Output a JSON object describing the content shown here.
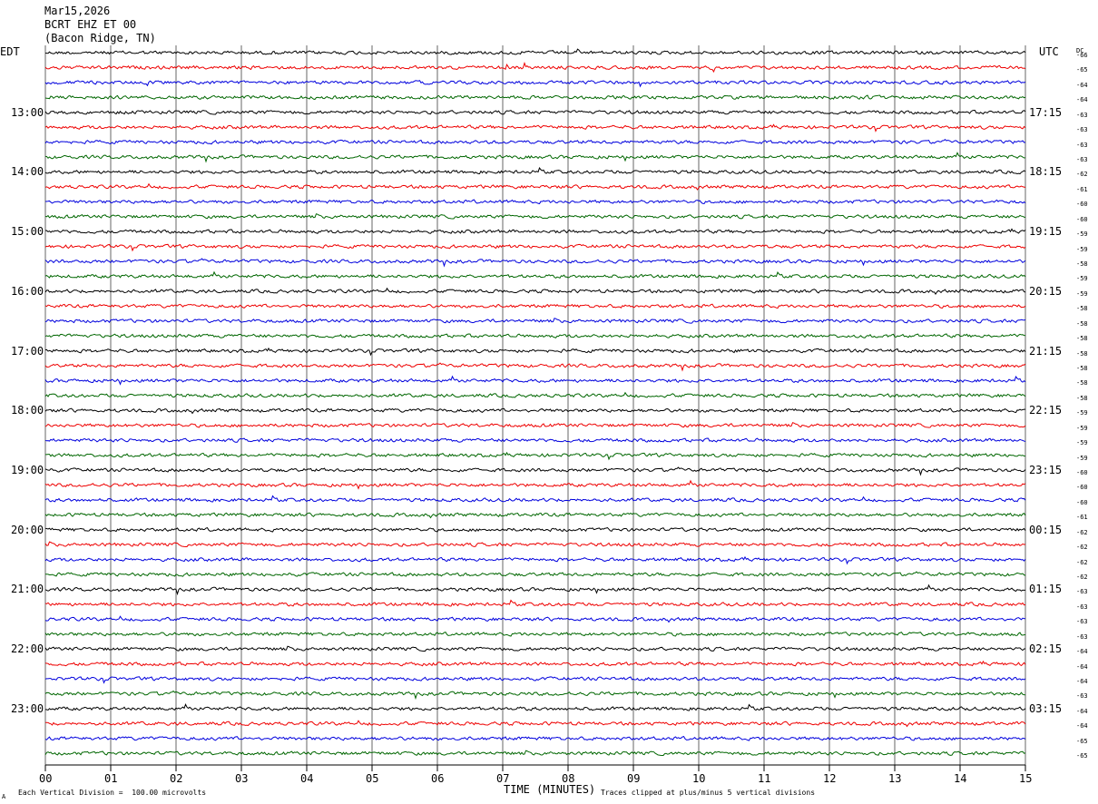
{
  "header": {
    "date": "Mar15,2026",
    "station": "BCRT EHZ ET 00",
    "location": "(Bacon Ridge, TN)"
  },
  "labels": {
    "left_zone": "EDT",
    "right_zone": "UTC",
    "dc_label": "DC",
    "xaxis_title": "TIME (MINUTES)",
    "scale_note": "Each Vertical Division =  100.00 microvolts",
    "clip_note": "Traces clipped at plus/minus 5 vertical divisions",
    "corner_mark": "A"
  },
  "chart_data": {
    "type": "line",
    "title": "",
    "xlabel": "TIME (MINUTES)",
    "xlim": [
      0,
      15
    ],
    "x_ticks": [
      "00",
      "01",
      "02",
      "03",
      "04",
      "05",
      "06",
      "07",
      "08",
      "09",
      "10",
      "11",
      "12",
      "13",
      "14",
      "15"
    ],
    "rows_per_hour": 4,
    "trace_colors": [
      "#000000",
      "#ee0000",
      "#0000dd",
      "#006600"
    ],
    "edt_hour_labels": [
      "13:00",
      "14:00",
      "15:00",
      "16:00",
      "17:00",
      "18:00",
      "19:00",
      "20:00",
      "21:00",
      "22:00",
      "23:00"
    ],
    "utc_hour_labels": [
      "17:15",
      "18:15",
      "19:15",
      "20:15",
      "21:15",
      "22:15",
      "23:15",
      "00:15",
      "01:15",
      "02:15",
      "03:15"
    ],
    "first_labeled_row": 4,
    "dc_offsets": [
      -66,
      -65,
      -64,
      -64,
      -63,
      -63,
      -63,
      -63,
      -62,
      -61,
      -60,
      -60,
      -59,
      -59,
      -58,
      -59,
      -59,
      -58,
      -58,
      -58,
      -58,
      -58,
      -58,
      -58,
      -59,
      -59,
      -59,
      -59,
      -60,
      -60,
      -60,
      -61,
      -62,
      -62,
      -62,
      -62,
      -63,
      -63,
      -63,
      -63,
      -64,
      -64,
      -64,
      -63,
      -64,
      -64,
      -65,
      -65
    ]
  }
}
